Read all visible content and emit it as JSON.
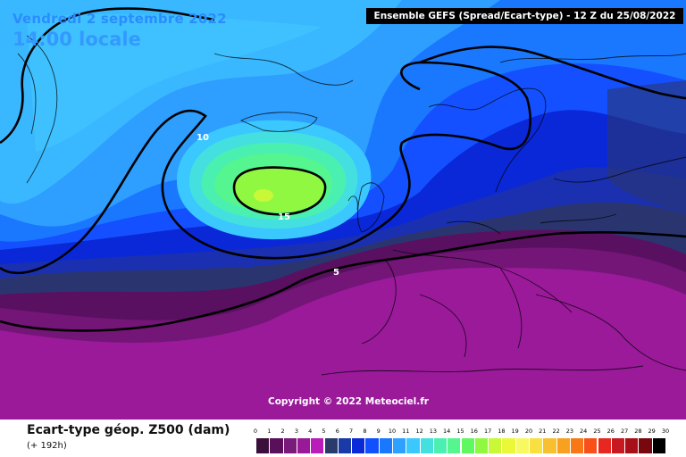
{
  "header": {
    "date": "Vendredi 2 septembre 2022",
    "time": "14:00 locale",
    "source": "Ensemble GEFS  (Spread/Ecart-type) - 12 Z du 25/08/2022"
  },
  "map": {
    "region": "North Atlantic / Europe",
    "contours": [
      {
        "label": "10",
        "value": 10
      },
      {
        "label": "15",
        "value": 15
      },
      {
        "label": "5",
        "value": 5
      }
    ],
    "copyright": "Copyright © 2022 Meteociel.fr"
  },
  "footer": {
    "title": "Ecart-type géop. Z500 (dam)",
    "forecast": "(+ 192h)"
  },
  "scale": {
    "ticks": [
      "0",
      "1",
      "2",
      "3",
      "4",
      "5",
      "6",
      "7",
      "8",
      "9",
      "10",
      "11",
      "12",
      "13",
      "14",
      "15",
      "16",
      "17",
      "18",
      "19",
      "20",
      "21",
      "22",
      "23",
      "24",
      "25",
      "26",
      "27",
      "28",
      "29",
      "30"
    ],
    "colors": [
      "#3a0f3a",
      "#5a0f5a",
      "#7a1a7a",
      "#991a99",
      "#b91cb9",
      "#2a3a6a",
      "#1a3aa8",
      "#0a2ad8",
      "#1050ff",
      "#1a78ff",
      "#2ea0ff",
      "#3ac8ff",
      "#44e0e0",
      "#4af0b0",
      "#55f590",
      "#60f860",
      "#90f840",
      "#c8f838",
      "#eaf838",
      "#f8f860",
      "#f8e040",
      "#f8c030",
      "#f8a020",
      "#f87818",
      "#f85018",
      "#e82820",
      "#c81820",
      "#a81018",
      "#780810",
      "#000000"
    ]
  },
  "colors": {
    "spread_low": "#3a0f3a",
    "spread_mid": "#1050ff",
    "spread_high": "#60f860",
    "title_text": "#3399ff"
  }
}
